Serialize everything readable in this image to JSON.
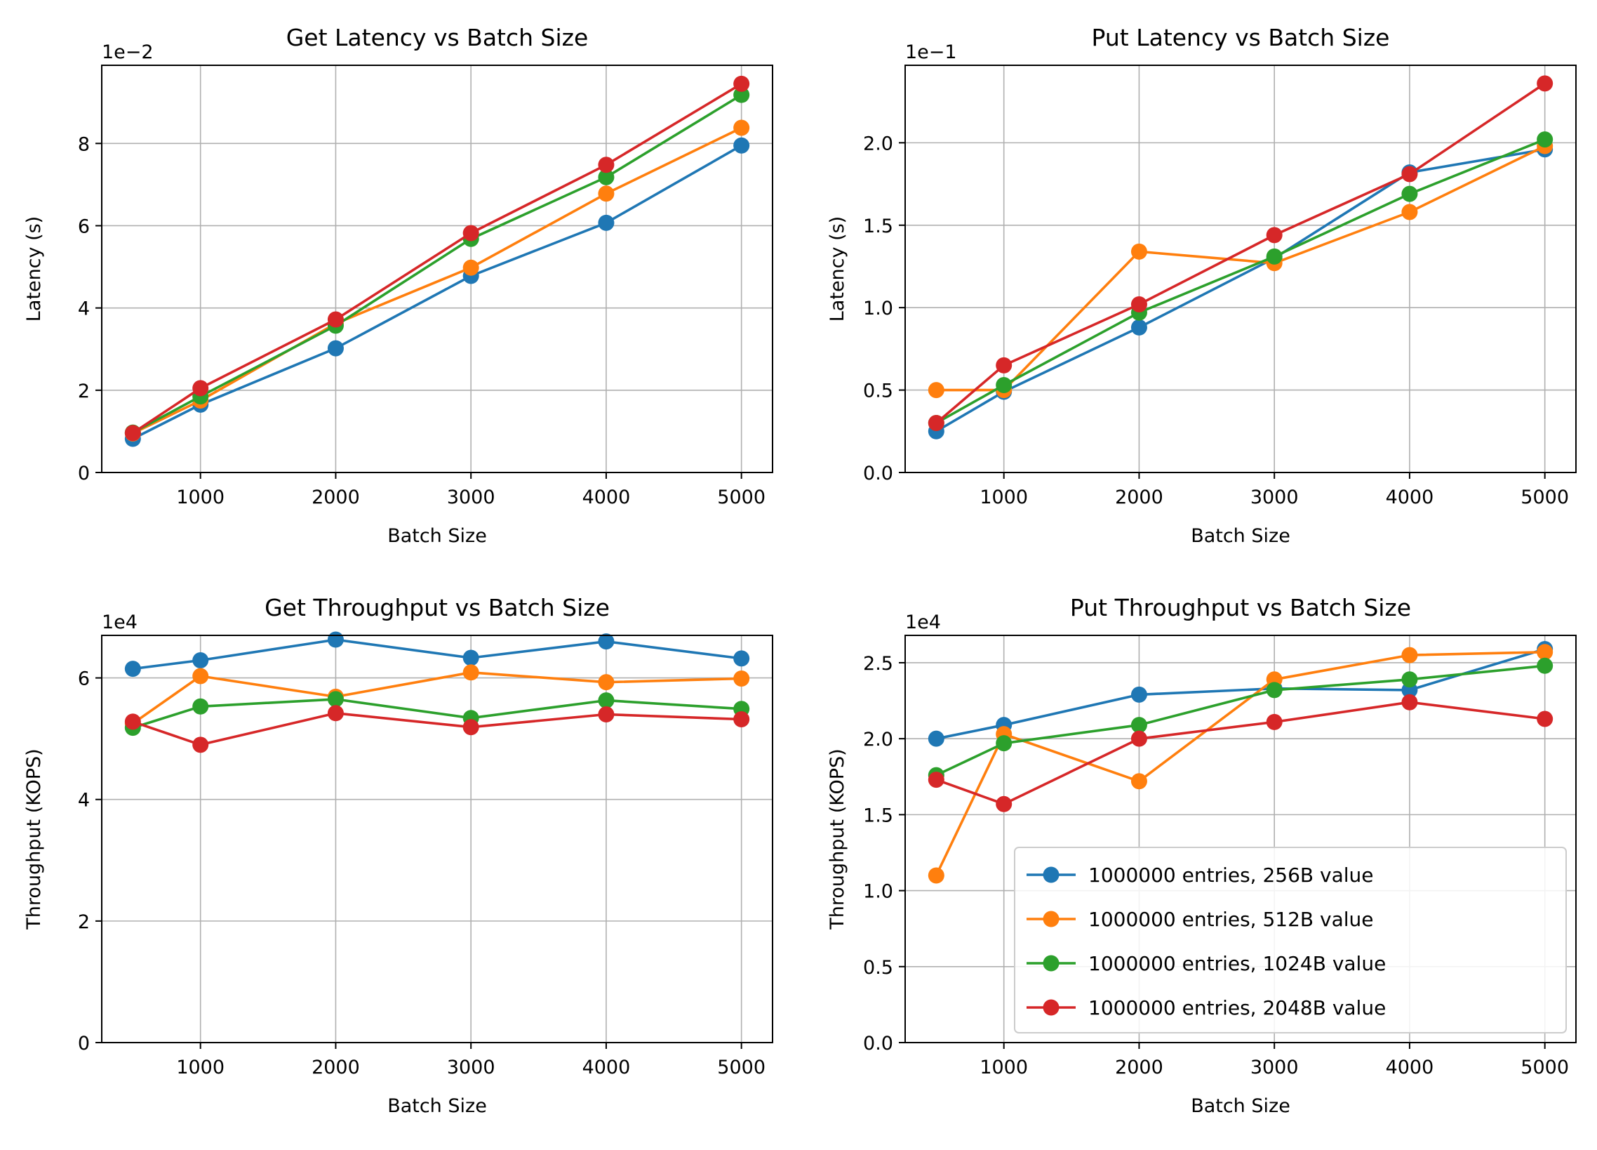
{
  "series_colors": [
    "#1f77b4",
    "#ff7f0e",
    "#2ca02c",
    "#d62728"
  ],
  "legend": {
    "placement": "lower-right",
    "in_chart": 3,
    "entries": [
      "1000000 entries, 256B value",
      "1000000 entries, 512B value",
      "1000000 entries, 1024B value",
      "1000000 entries, 2048B value"
    ]
  },
  "chart_data": [
    {
      "type": "line",
      "title": "Get Latency vs Batch Size",
      "xlabel": "Batch Size",
      "ylabel": "Latency (s)",
      "offset_text": "1e−2",
      "x": [
        500,
        1000,
        2000,
        3000,
        4000,
        5000
      ],
      "xlim": [
        270,
        5230
      ],
      "ylim": [
        0,
        9.9
      ],
      "xticks": [
        1000,
        2000,
        3000,
        4000,
        5000
      ],
      "xtick_labels": [
        "1000",
        "2000",
        "3000",
        "4000",
        "5000"
      ],
      "yticks": [
        0,
        2,
        4,
        6,
        8
      ],
      "ytick_labels": [
        "0",
        "2",
        "4",
        "6",
        "8"
      ],
      "grid": true,
      "series": [
        {
          "values": [
            0.82,
            1.65,
            3.02,
            4.78,
            6.07,
            7.95
          ]
        },
        {
          "values": [
            0.95,
            1.75,
            3.62,
            4.98,
            6.78,
            8.38
          ]
        },
        {
          "values": [
            0.97,
            1.85,
            3.57,
            5.68,
            7.18,
            9.18
          ]
        },
        {
          "values": [
            0.96,
            2.05,
            3.72,
            5.82,
            7.48,
            9.45
          ]
        }
      ]
    },
    {
      "type": "line",
      "title": "Put Latency vs Batch Size",
      "xlabel": "Batch Size",
      "ylabel": "Latency (s)",
      "offset_text": "1e−1",
      "x": [
        500,
        1000,
        2000,
        3000,
        4000,
        5000
      ],
      "xlim": [
        270,
        5230
      ],
      "ylim": [
        0,
        2.47
      ],
      "xticks": [
        1000,
        2000,
        3000,
        4000,
        5000
      ],
      "xtick_labels": [
        "1000",
        "2000",
        "3000",
        "4000",
        "5000"
      ],
      "yticks": [
        0.0,
        0.5,
        1.0,
        1.5,
        2.0
      ],
      "ytick_labels": [
        "0.0",
        "0.5",
        "1.0",
        "1.5",
        "2.0"
      ],
      "grid": true,
      "series": [
        {
          "values": [
            0.25,
            0.49,
            0.88,
            1.3,
            1.82,
            1.96
          ]
        },
        {
          "values": [
            0.5,
            0.5,
            1.34,
            1.27,
            1.58,
            1.98
          ]
        },
        {
          "values": [
            0.3,
            0.53,
            0.97,
            1.31,
            1.69,
            2.02
          ]
        },
        {
          "values": [
            0.3,
            0.65,
            1.02,
            1.44,
            1.81,
            2.36
          ]
        }
      ]
    },
    {
      "type": "line",
      "title": "Get Throughput vs Batch Size",
      "xlabel": "Batch Size",
      "ylabel": "Throughput (KOPS)",
      "offset_text": "1e4",
      "x": [
        500,
        1000,
        2000,
        3000,
        4000,
        5000
      ],
      "xlim": [
        270,
        5230
      ],
      "ylim": [
        0,
        6.7
      ],
      "xticks": [
        1000,
        2000,
        3000,
        4000,
        5000
      ],
      "xtick_labels": [
        "1000",
        "2000",
        "3000",
        "4000",
        "5000"
      ],
      "yticks": [
        0,
        2,
        4,
        6
      ],
      "ytick_labels": [
        "0",
        "2",
        "4",
        "6"
      ],
      "grid": true,
      "series": [
        {
          "values": [
            6.15,
            6.29,
            6.63,
            6.33,
            6.6,
            6.32
          ]
        },
        {
          "values": [
            5.25,
            6.03,
            5.69,
            6.09,
            5.93,
            5.99
          ]
        },
        {
          "values": [
            5.18,
            5.53,
            5.65,
            5.34,
            5.63,
            5.49
          ]
        },
        {
          "values": [
            5.28,
            4.9,
            5.42,
            5.19,
            5.4,
            5.32
          ]
        }
      ]
    },
    {
      "type": "line",
      "title": "Put Throughput vs Batch Size",
      "xlabel": "Batch Size",
      "ylabel": "Throughput (KOPS)",
      "offset_text": "1e4",
      "x": [
        500,
        1000,
        2000,
        3000,
        4000,
        5000
      ],
      "xlim": [
        270,
        5230
      ],
      "ylim": [
        0,
        2.68
      ],
      "xticks": [
        1000,
        2000,
        3000,
        4000,
        5000
      ],
      "xtick_labels": [
        "1000",
        "2000",
        "3000",
        "4000",
        "5000"
      ],
      "yticks": [
        0.0,
        0.5,
        1.0,
        1.5,
        2.0,
        2.5
      ],
      "ytick_labels": [
        "0.0",
        "0.5",
        "1.0",
        "1.5",
        "2.0",
        "2.5"
      ],
      "grid": true,
      "series": [
        {
          "values": [
            2.0,
            2.09,
            2.29,
            2.33,
            2.32,
            2.59
          ]
        },
        {
          "values": [
            1.1,
            2.03,
            1.72,
            2.39,
            2.55,
            2.57
          ]
        },
        {
          "values": [
            1.76,
            1.97,
            2.09,
            2.32,
            2.39,
            2.48
          ]
        },
        {
          "values": [
            1.73,
            1.57,
            2.0,
            2.11,
            2.24,
            2.13
          ]
        }
      ]
    }
  ]
}
